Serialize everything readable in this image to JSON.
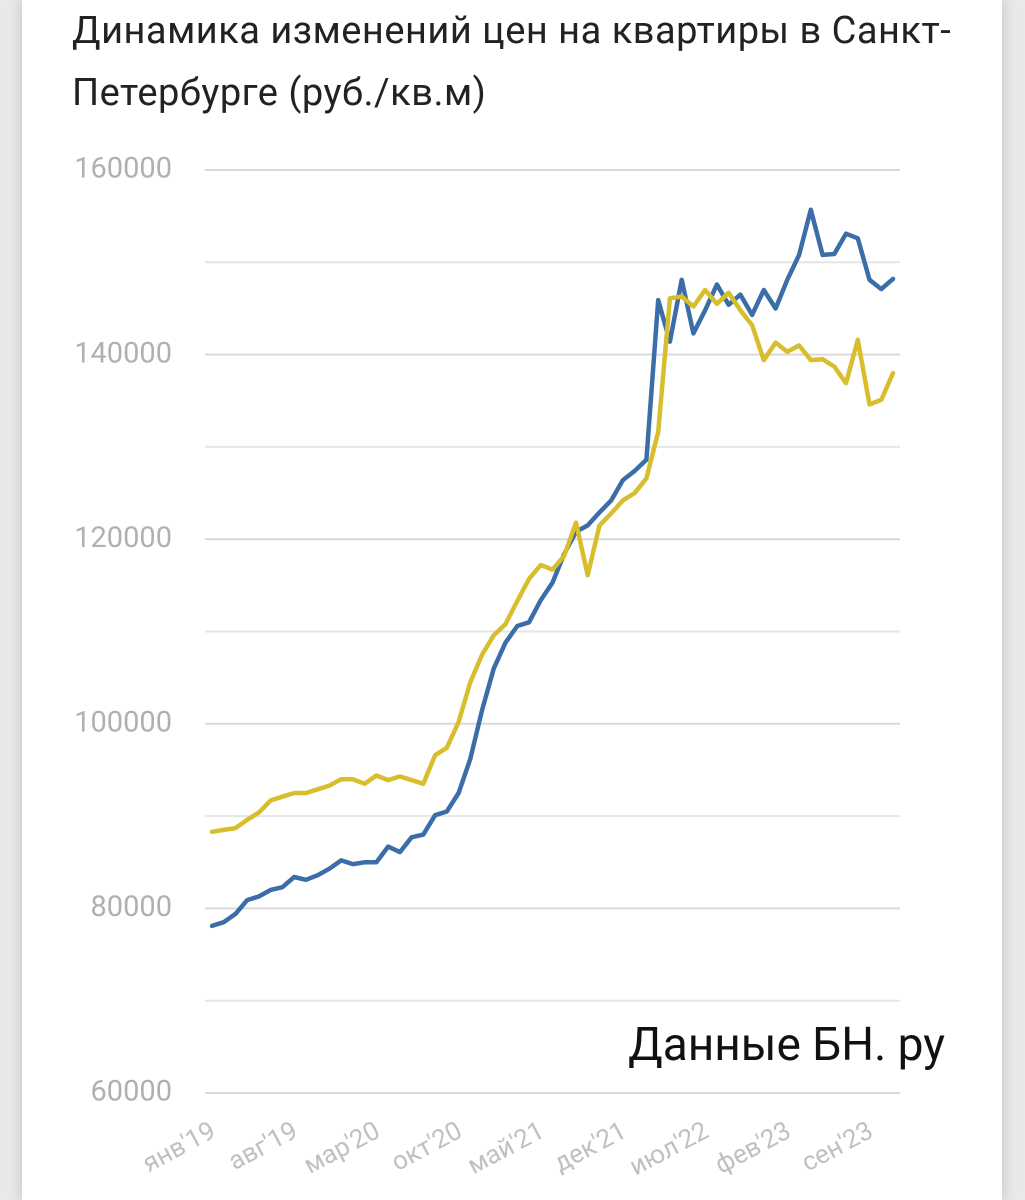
{
  "chart_data": {
    "type": "line",
    "title": "Динамика изменений цен на квартиры в Санкт-Петербурге (руб./кв.м)",
    "annotation": "Данные БН. ру",
    "categories": [
      "янв'19",
      null,
      null,
      null,
      null,
      null,
      null,
      "авг'19",
      null,
      null,
      null,
      null,
      null,
      null,
      "мар'20",
      null,
      null,
      null,
      null,
      null,
      null,
      "окт'20",
      null,
      null,
      null,
      null,
      null,
      null,
      "май'21",
      null,
      null,
      null,
      null,
      null,
      null,
      "дек'21",
      null,
      null,
      null,
      null,
      null,
      null,
      "июл'22",
      null,
      null,
      null,
      null,
      null,
      null,
      "фев'23",
      null,
      null,
      null,
      null,
      null,
      null,
      "сен'23",
      null,
      null
    ],
    "series": [
      {
        "color": "#3b6ea8",
        "values": [
          78100,
          78500,
          79400,
          80900,
          81300,
          82000,
          82300,
          83400,
          83100,
          83600,
          84300,
          85200,
          84800,
          85000,
          85000,
          86700,
          86100,
          87700,
          88000,
          90100,
          90500,
          92500,
          96200,
          101500,
          106000,
          108800,
          110600,
          111000,
          113400,
          115300,
          118400,
          120800,
          121500,
          122900,
          124200,
          126400,
          127400,
          128600,
          145900,
          141400,
          148100,
          142300,
          144800,
          147600,
          145400,
          146500,
          144300,
          147000,
          145000,
          148100,
          150800,
          155700,
          150800,
          150900,
          153100,
          152600,
          148100,
          147100,
          148200
        ]
      },
      {
        "color": "#d8bd2c",
        "values": [
          88300,
          88500,
          88700,
          89600,
          90400,
          91700,
          92100,
          92500,
          92500,
          92900,
          93300,
          94000,
          94000,
          93500,
          94400,
          93900,
          94300,
          93900,
          93500,
          96600,
          97400,
          100200,
          104500,
          107500,
          109600,
          110800,
          113300,
          115700,
          117200,
          116700,
          118200,
          121800,
          116100,
          121500,
          122800,
          124200,
          125000,
          126600,
          131600,
          146100,
          146300,
          145200,
          147000,
          145500,
          146700,
          144800,
          143200,
          139400,
          141300,
          140300,
          141000,
          139400,
          139500,
          138700,
          136900,
          141600,
          134600,
          135100,
          138000
        ]
      }
    ],
    "ylim": [
      60000,
      160000
    ],
    "yticks": [
      60000,
      80000,
      100000,
      120000,
      140000,
      160000
    ],
    "minor_gridlines": [
      70000,
      90000,
      110000,
      130000,
      150000
    ],
    "grid": true
  }
}
